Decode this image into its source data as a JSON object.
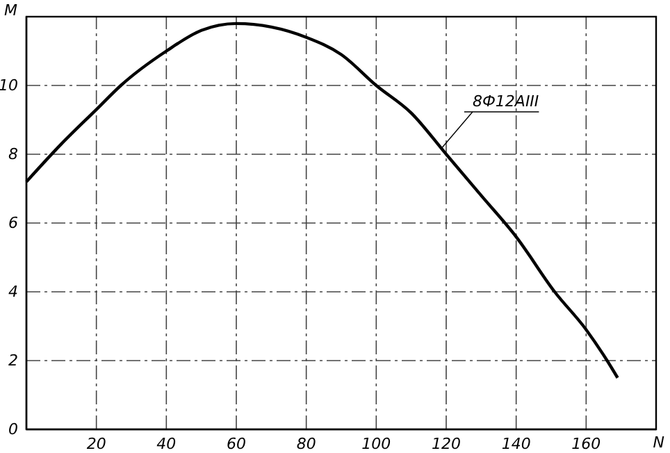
{
  "chart_data": {
    "type": "line",
    "xlabel": "N",
    "ylabel": "M",
    "xlim": [
      0,
      180
    ],
    "ylim": [
      0,
      12
    ],
    "xticks": [
      20,
      40,
      60,
      80,
      100,
      120,
      140,
      160
    ],
    "yticks": [
      0,
      2,
      4,
      6,
      8,
      10
    ],
    "grid": true,
    "marker": "none",
    "line_style": "solid",
    "series": [
      {
        "color": "#000000",
        "x": [
          0,
          10,
          20,
          27,
          40,
          50,
          60,
          70,
          80,
          90,
          100,
          110,
          120,
          130,
          140,
          151,
          160,
          166,
          169
        ],
        "values": [
          7.2,
          8.3,
          9.3,
          10,
          11.0,
          11.6,
          11.8,
          11.7,
          11.4,
          10.9,
          10.0,
          9.2,
          8.0,
          6.8,
          5.6,
          4.0,
          2.9,
          2.0,
          1.5
        ]
      }
    ],
    "annotations": [
      {
        "text": "8Ф12АIII",
        "x": 118,
        "y": 8.1
      }
    ]
  }
}
